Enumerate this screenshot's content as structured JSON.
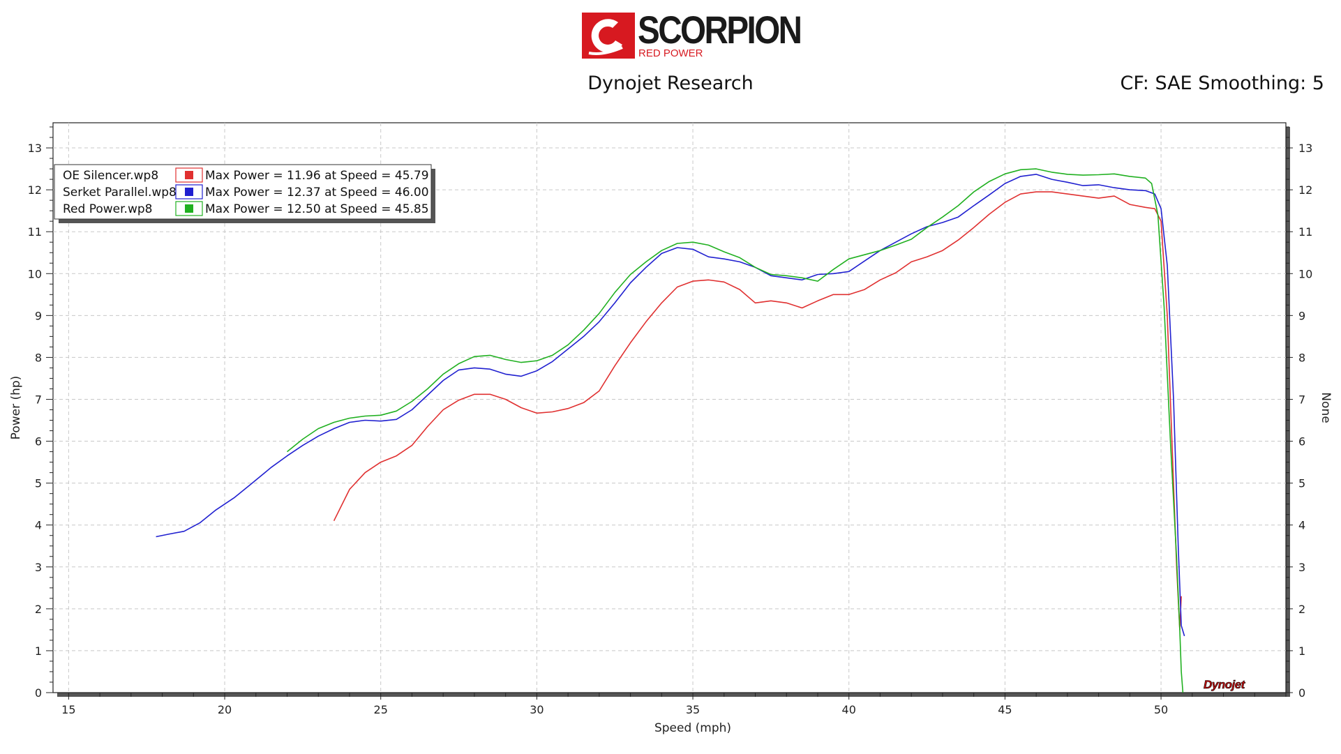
{
  "header": {
    "logo_text": "SCORPION",
    "logo_subtext": "RED POWER",
    "title": "Dynojet Research",
    "settings": "CF: SAE Smoothing: 5",
    "watermark": "Dynojet",
    "brand_color": "#d71920"
  },
  "chart_data": {
    "type": "line",
    "xlabel": "Speed (mph)",
    "ylabel": "Power (hp)",
    "y2label": "None",
    "xlim": [
      14.5,
      54
    ],
    "ylim": [
      0,
      13.6
    ],
    "xticks": [
      15,
      20,
      25,
      30,
      35,
      40,
      45,
      50
    ],
    "yticks": [
      0,
      1,
      2,
      3,
      4,
      5,
      6,
      7,
      8,
      9,
      10,
      11,
      12,
      13
    ],
    "grid": true,
    "legend_position": "top-left",
    "series": [
      {
        "name": "OE Silencer.wp8",
        "color": "#e03030",
        "summary": "Max Power = 11.96 at Speed = 45.79",
        "x": [
          23.5,
          24.0,
          24.5,
          25.0,
          25.5,
          26.0,
          26.5,
          27.0,
          27.5,
          28.0,
          28.5,
          29.0,
          29.5,
          30.0,
          30.5,
          31.0,
          31.5,
          32.0,
          32.5,
          33.0,
          33.5,
          34.0,
          34.5,
          35.0,
          35.5,
          36.0,
          36.5,
          37.0,
          37.5,
          38.0,
          38.5,
          39.0,
          39.5,
          40.0,
          40.5,
          41.0,
          41.5,
          42.0,
          42.5,
          43.0,
          43.5,
          44.0,
          44.5,
          45.0,
          45.5,
          46.0,
          46.5,
          47.0,
          47.5,
          48.0,
          48.5,
          49.0,
          49.5,
          49.8,
          50.0,
          50.2,
          50.35,
          50.5,
          50.6,
          50.65
        ],
        "y": [
          4.1,
          4.85,
          5.25,
          5.5,
          5.65,
          5.9,
          6.35,
          6.75,
          6.98,
          7.12,
          7.12,
          7.0,
          6.8,
          6.67,
          6.7,
          6.78,
          6.92,
          7.2,
          7.8,
          8.35,
          8.85,
          9.3,
          9.68,
          9.82,
          9.85,
          9.8,
          9.62,
          9.3,
          9.35,
          9.3,
          9.18,
          9.35,
          9.5,
          9.5,
          9.62,
          9.85,
          10.02,
          10.28,
          10.4,
          10.55,
          10.8,
          11.1,
          11.42,
          11.7,
          11.9,
          11.95,
          11.95,
          11.9,
          11.85,
          11.8,
          11.85,
          11.65,
          11.58,
          11.55,
          11.25,
          9.0,
          6.0,
          3.0,
          1.5,
          2.3
        ]
      },
      {
        "name": "Serket Parallel.wp8",
        "color": "#2020d0",
        "summary": "Max Power = 12.37 at Speed = 46.00",
        "x": [
          17.8,
          18.2,
          18.7,
          19.2,
          19.7,
          20.3,
          20.8,
          21.5,
          22.0,
          22.5,
          23.0,
          23.5,
          24.0,
          24.5,
          25.0,
          25.5,
          26.0,
          26.5,
          27.0,
          27.5,
          28.0,
          28.5,
          29.0,
          29.5,
          30.0,
          30.5,
          31.0,
          31.5,
          32.0,
          32.5,
          33.0,
          33.5,
          34.0,
          34.5,
          35.0,
          35.5,
          36.0,
          36.5,
          37.0,
          37.5,
          38.0,
          38.5,
          39.0,
          39.5,
          40.0,
          40.5,
          41.0,
          41.5,
          42.0,
          42.5,
          43.0,
          43.5,
          44.0,
          44.5,
          45.0,
          45.5,
          46.0,
          46.5,
          47.0,
          47.5,
          48.0,
          48.5,
          49.0,
          49.5,
          49.8,
          50.0,
          50.2,
          50.4,
          50.55,
          50.65,
          50.75
        ],
        "y": [
          3.72,
          3.78,
          3.85,
          4.05,
          4.35,
          4.65,
          4.95,
          5.38,
          5.65,
          5.9,
          6.12,
          6.3,
          6.45,
          6.5,
          6.48,
          6.52,
          6.75,
          7.1,
          7.45,
          7.7,
          7.75,
          7.72,
          7.6,
          7.55,
          7.68,
          7.9,
          8.2,
          8.5,
          8.85,
          9.3,
          9.78,
          10.15,
          10.48,
          10.62,
          10.58,
          10.4,
          10.35,
          10.28,
          10.15,
          9.95,
          9.9,
          9.85,
          9.98,
          10.0,
          10.05,
          10.3,
          10.55,
          10.75,
          10.95,
          11.12,
          11.22,
          11.35,
          11.62,
          11.88,
          12.15,
          12.32,
          12.37,
          12.25,
          12.18,
          12.1,
          12.12,
          12.05,
          12.0,
          11.98,
          11.9,
          11.55,
          10.2,
          7.0,
          3.5,
          1.6,
          1.35
        ]
      },
      {
        "name": "Red Power.wp8",
        "color": "#20b020",
        "summary": "Max Power = 12.50 at Speed = 45.85",
        "x": [
          22.0,
          22.5,
          23.0,
          23.5,
          24.0,
          24.5,
          25.0,
          25.5,
          26.0,
          26.5,
          27.0,
          27.5,
          28.0,
          28.5,
          29.0,
          29.5,
          30.0,
          30.5,
          31.0,
          31.5,
          32.0,
          32.5,
          33.0,
          33.5,
          34.0,
          34.5,
          35.0,
          35.5,
          36.0,
          36.5,
          37.0,
          37.5,
          38.0,
          38.5,
          39.0,
          39.5,
          40.0,
          40.5,
          41.0,
          41.5,
          42.0,
          42.5,
          43.0,
          43.5,
          44.0,
          44.5,
          45.0,
          45.5,
          46.0,
          46.5,
          47.0,
          47.5,
          48.0,
          48.5,
          49.0,
          49.5,
          49.7,
          49.9,
          50.1,
          50.3,
          50.5,
          50.6,
          50.65,
          50.7
        ],
        "y": [
          5.75,
          6.05,
          6.3,
          6.45,
          6.55,
          6.6,
          6.62,
          6.72,
          6.95,
          7.25,
          7.6,
          7.85,
          8.02,
          8.05,
          7.95,
          7.88,
          7.92,
          8.05,
          8.3,
          8.65,
          9.05,
          9.55,
          9.98,
          10.28,
          10.55,
          10.72,
          10.75,
          10.68,
          10.52,
          10.38,
          10.15,
          9.98,
          9.95,
          9.9,
          9.82,
          10.1,
          10.35,
          10.45,
          10.55,
          10.68,
          10.82,
          11.1,
          11.35,
          11.62,
          11.95,
          12.2,
          12.38,
          12.48,
          12.5,
          12.42,
          12.37,
          12.35,
          12.36,
          12.38,
          12.32,
          12.28,
          12.15,
          11.4,
          9.2,
          6.0,
          3.2,
          1.5,
          0.5,
          0.0
        ]
      }
    ]
  }
}
